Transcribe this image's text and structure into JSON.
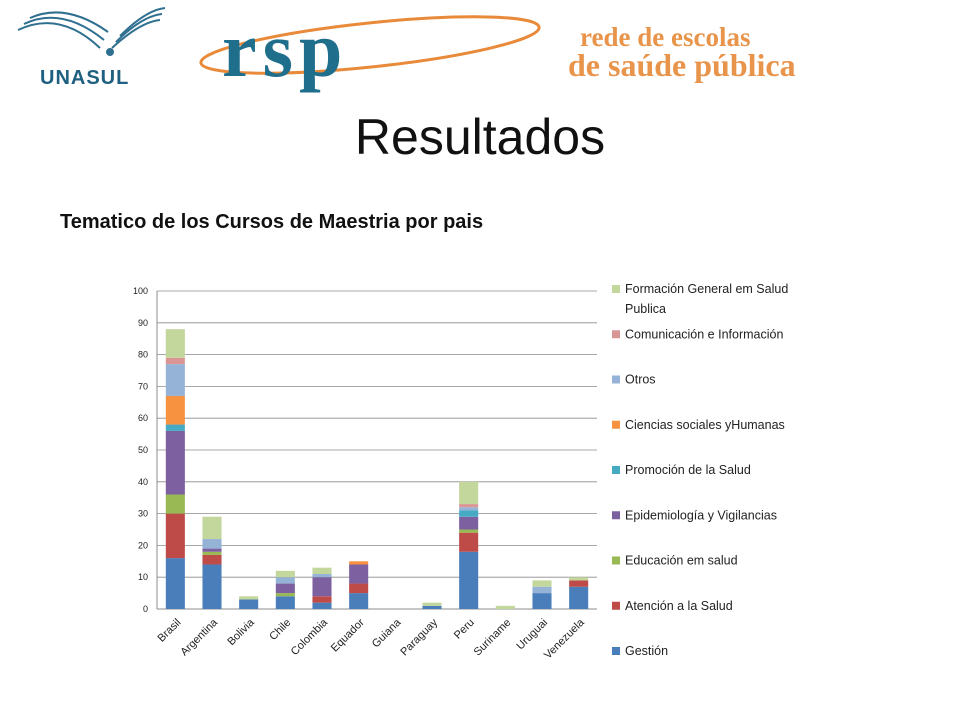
{
  "header": {
    "unasul_text": "UNASUL",
    "rsp_text": "rsp",
    "network_line1": "rede de escolas",
    "network_line2": "de saúde pública"
  },
  "slide": {
    "title": "Resultados",
    "chart_heading": "Tematico de los Cursos de Maestria  por pais"
  },
  "chart_data": {
    "type": "bar",
    "stacked": true,
    "title": "",
    "xlabel": "",
    "ylabel": "",
    "ylim": [
      0,
      100
    ],
    "yticks": [
      0,
      10,
      20,
      30,
      40,
      50,
      60,
      70,
      80,
      90,
      100
    ],
    "grid": true,
    "legend_position": "right",
    "categories": [
      "Brasil",
      "Argentina",
      "Bolivia",
      "Chile",
      "Colombia",
      "Equador",
      "Guiana",
      "Paraguay",
      "Peru",
      "Suriname",
      "Uruguai",
      "Venezuela"
    ],
    "series": [
      {
        "name": "Gestión",
        "color": "#4A7EBB",
        "values": [
          16,
          14,
          3,
          4,
          2,
          5,
          0,
          1,
          18,
          0,
          5,
          7
        ]
      },
      {
        "name": "Atención a la Salud",
        "color": "#BE4B48",
        "values": [
          14,
          3,
          0,
          0,
          2,
          3,
          0,
          0,
          6,
          0,
          0,
          2
        ]
      },
      {
        "name": "Educación em salud",
        "color": "#98B954",
        "values": [
          6,
          1,
          0,
          1,
          0,
          0,
          0,
          0,
          1,
          0,
          0,
          0
        ]
      },
      {
        "name": "Epidemiología y Vigilancias",
        "color": "#7D60A0",
        "values": [
          20,
          1,
          0,
          3,
          6,
          6,
          0,
          0,
          4,
          0,
          0,
          0
        ]
      },
      {
        "name": "Promoción de la Salud",
        "color": "#46AAC5",
        "values": [
          2,
          0,
          0,
          0,
          0,
          0,
          0,
          0,
          2,
          0,
          0,
          0
        ]
      },
      {
        "name": "Ciencias sociales yHumanas",
        "color": "#F69240",
        "values": [
          9,
          0,
          0,
          0,
          0,
          1,
          0,
          0,
          0,
          0,
          0,
          0
        ]
      },
      {
        "name": "Otros",
        "color": "#95B3D7",
        "values": [
          10,
          3,
          0,
          2,
          1,
          0,
          0,
          0,
          1,
          0,
          2,
          0
        ]
      },
      {
        "name": "Comunicación e Información",
        "color": "#D99694",
        "values": [
          2,
          0,
          0,
          0,
          0,
          0,
          0,
          0,
          1,
          0,
          0,
          0
        ]
      },
      {
        "name": "Formación General em Salud Publica",
        "color": "#C3D69B",
        "values": [
          9,
          7,
          1,
          2,
          2,
          0,
          0,
          1,
          7,
          1,
          2,
          1
        ]
      }
    ]
  }
}
